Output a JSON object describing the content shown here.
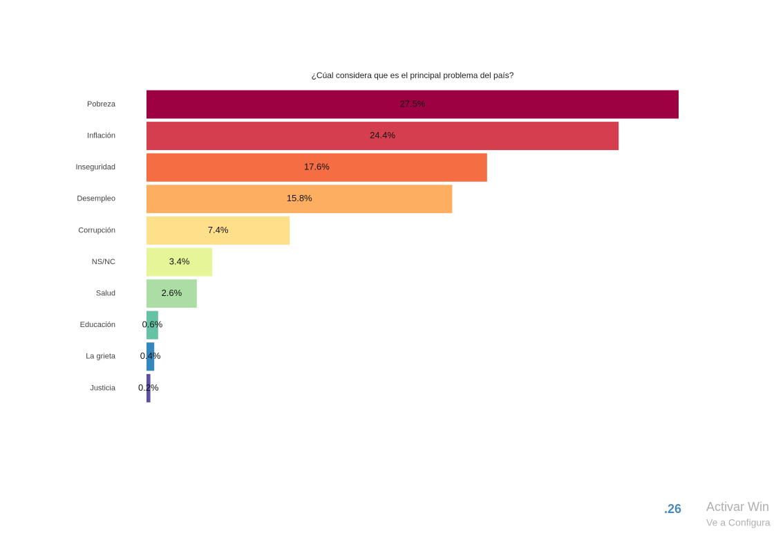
{
  "chart_data": {
    "type": "barh",
    "title": "¿Cúal considera que es el principal problema del país?",
    "categories": [
      "Pobreza",
      "Inflación",
      "Inseguridad",
      "Desempleo",
      "Corrupción",
      "NS/NC",
      "Salud",
      "Educación",
      "La grieta",
      "Justicia"
    ],
    "values": [
      27.5,
      24.4,
      17.6,
      15.8,
      7.4,
      3.4,
      2.6,
      0.6,
      0.4,
      0.2
    ],
    "value_labels": [
      "27.5%",
      "24.4%",
      "17.6%",
      "15.8%",
      "7.4%",
      "3.4%",
      "2.6%",
      "0.6%",
      "0.4%",
      "0.2%"
    ],
    "colors": [
      "#9e0142",
      "#d53e4f",
      "#f46d43",
      "#fdae61",
      "#fee08b",
      "#e6f598",
      "#abdda4",
      "#66c2a5",
      "#3288bd",
      "#5e4fa2"
    ]
  },
  "overlay": {
    "page_number": ".26",
    "watermark_title": "Activar Win",
    "watermark_subtitle": "Ve a Configura"
  }
}
